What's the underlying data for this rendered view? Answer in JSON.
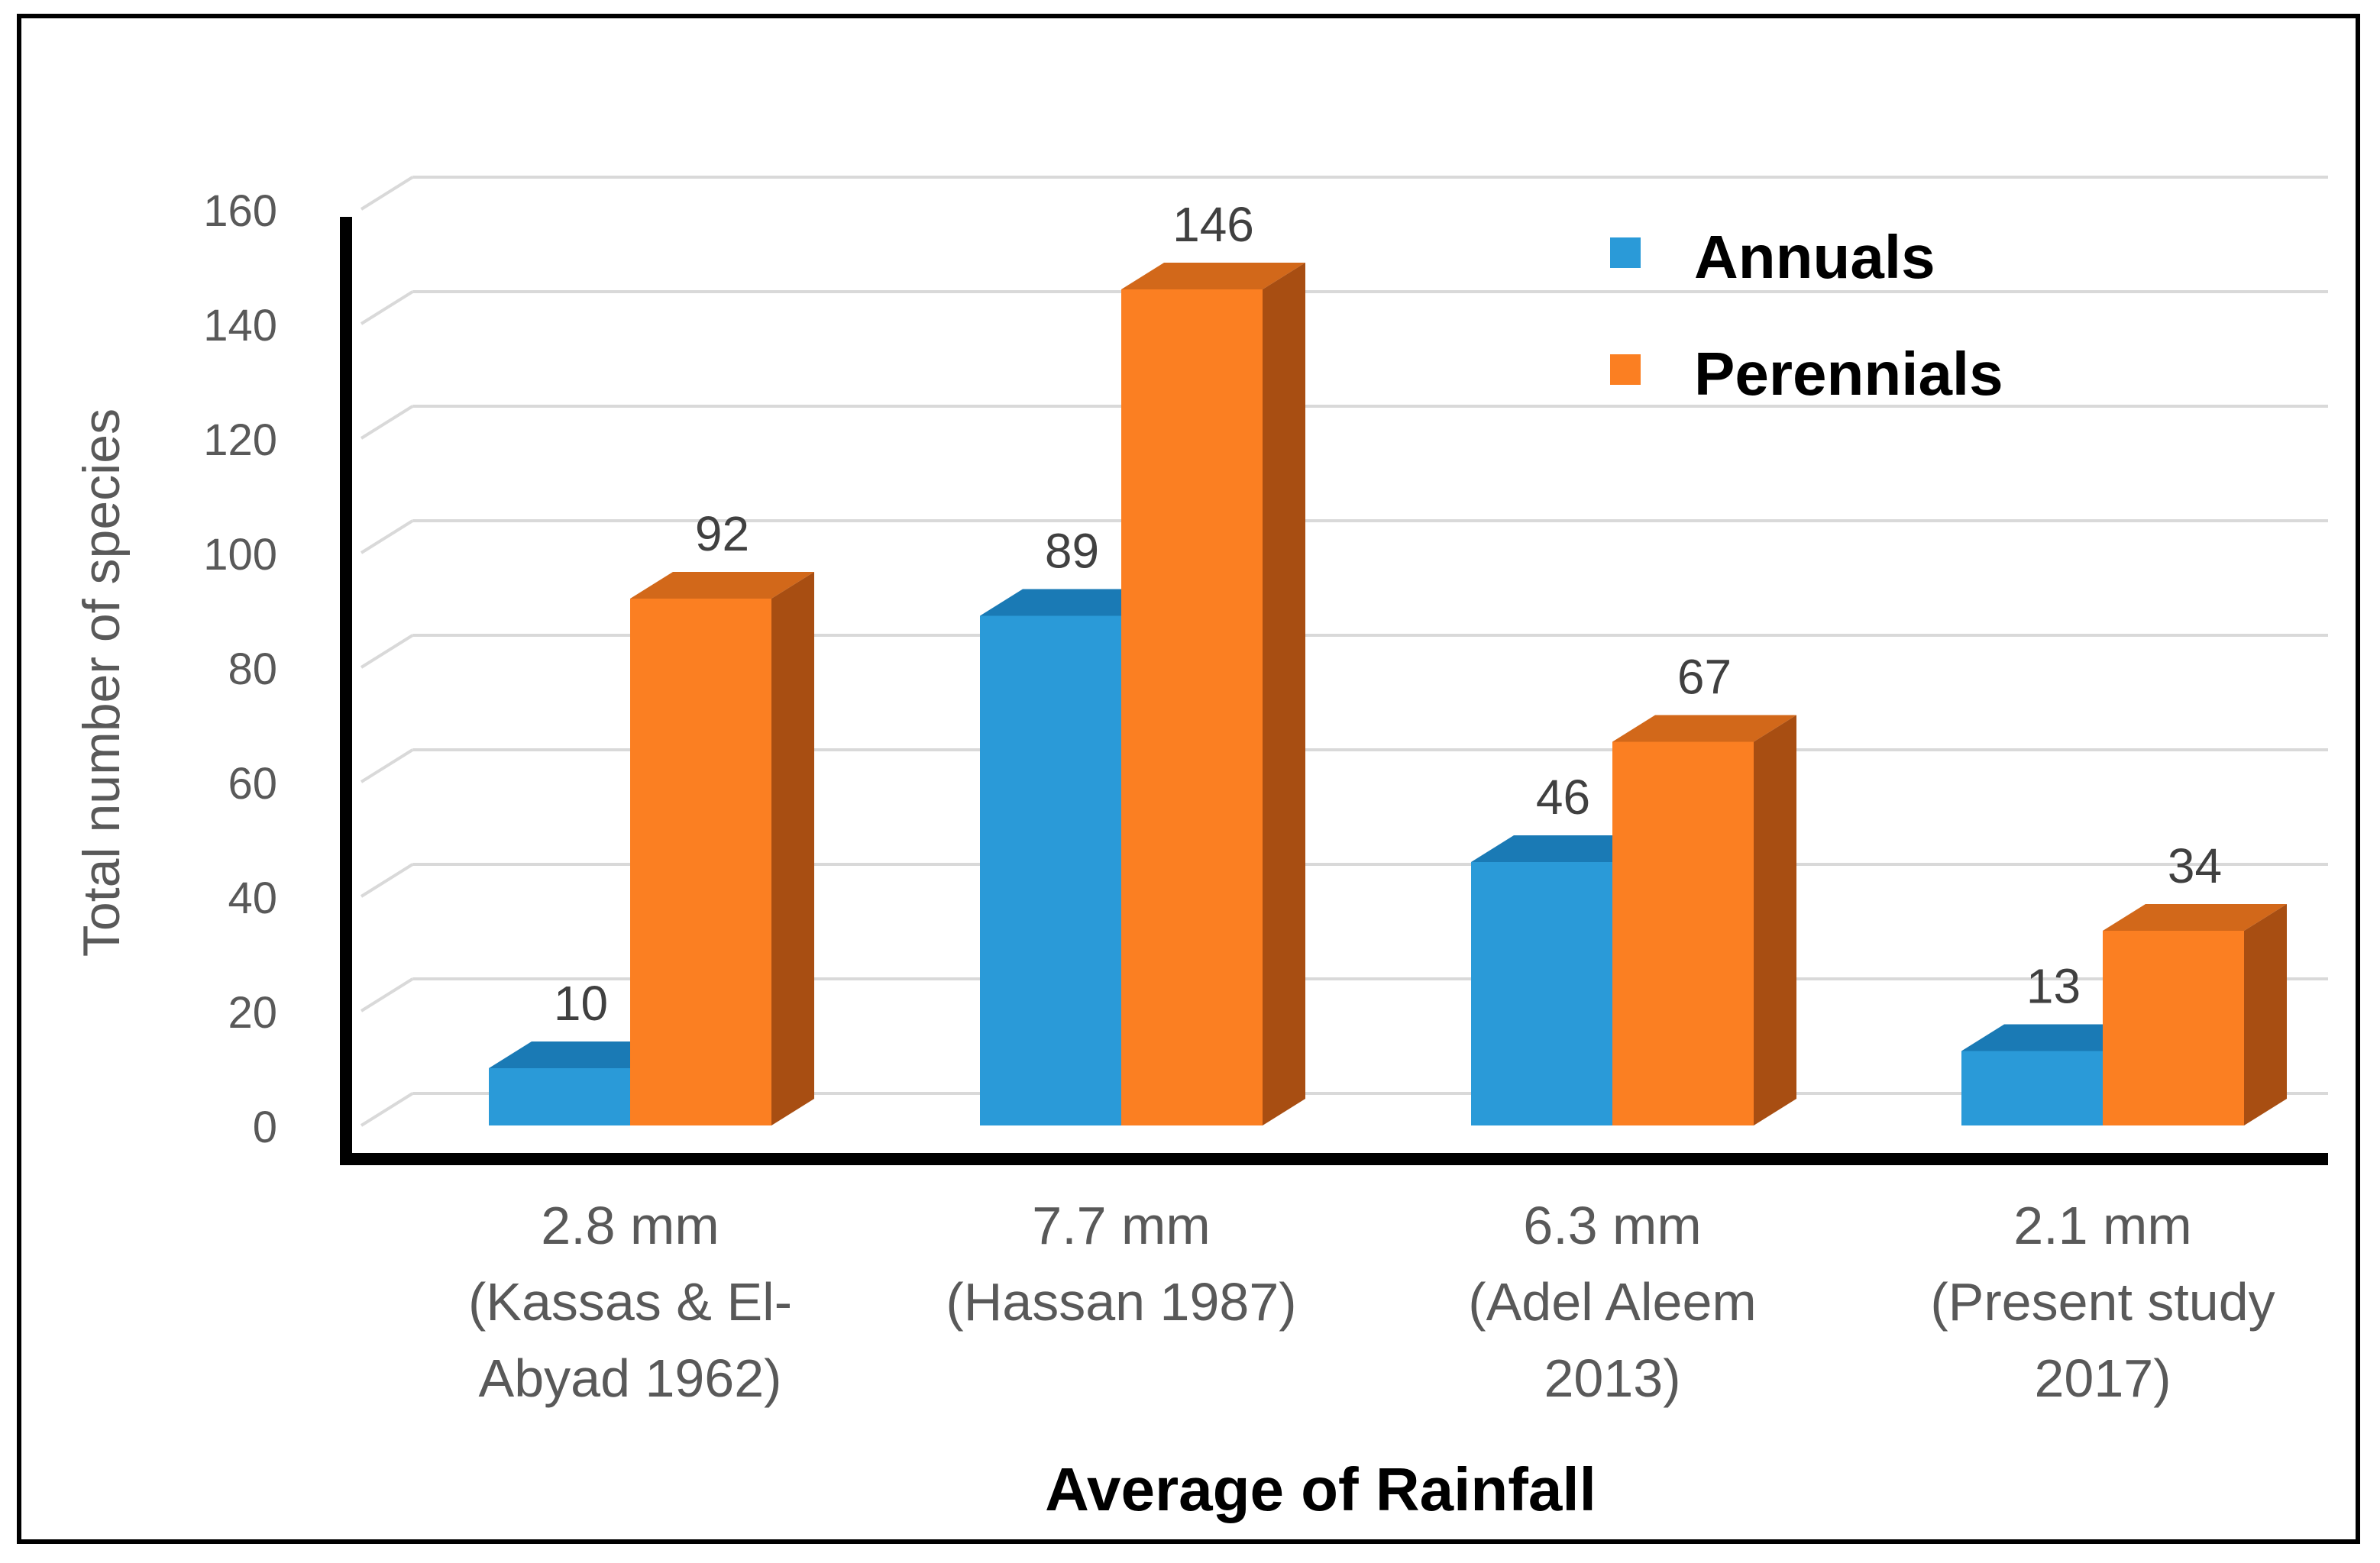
{
  "chart_data": {
    "type": "bar",
    "style": "3d-clustered-column",
    "title": "",
    "xlabel": "Average of Rainfall",
    "ylabel": "Total number of species",
    "ylim": [
      0,
      160
    ],
    "yticks": [
      0,
      20,
      40,
      60,
      80,
      100,
      120,
      140,
      160
    ],
    "grid": true,
    "legend_position": "top-right",
    "categories": [
      [
        "2.8 mm",
        "(Kassas & El-",
        "Abyad 1962)"
      ],
      [
        "7.7 mm",
        "(Hassan 1987)"
      ],
      [
        "6.3 mm",
        "(Adel Aleem",
        "2013)"
      ],
      [
        "2.1 mm",
        "(Present study",
        "2017)"
      ]
    ],
    "series": [
      {
        "name": "Annuals",
        "values": [
          10,
          89,
          46,
          13
        ],
        "color": "#2a9ad8",
        "top_color": "#1a7ab5"
      },
      {
        "name": "Perennials",
        "values": [
          92,
          146,
          67,
          34
        ],
        "color": "#fb7f22",
        "side_color": "#a84e12",
        "top_color": "#d2681a"
      }
    ]
  }
}
